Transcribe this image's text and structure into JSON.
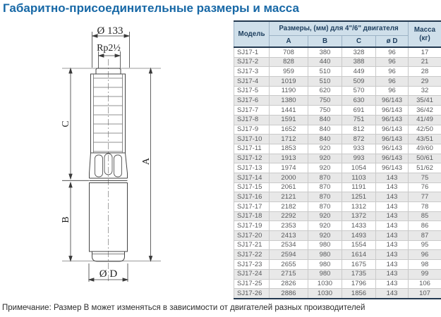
{
  "page": {
    "title": "Габаритно-присоединительные размеры и масса",
    "note": "Примечание: Размер B может изменяться в зависимости от двигателей разных производителей"
  },
  "drawing": {
    "top_diameter_label": "Ø 133",
    "thread_label": "Rp2½",
    "dim_a_label": "A",
    "dim_b_label": "B",
    "dim_c_label": "C",
    "bottom_diameter_label": "Ø D"
  },
  "table": {
    "header": {
      "model": "Модель",
      "dims_group": "Размеры, (мм) для 4\"/6\" двигателя",
      "dim_columns": [
        "A",
        "B",
        "C",
        "ø D"
      ],
      "mass_line1": "Масса",
      "mass_line2": "(кг)"
    },
    "rows": [
      [
        "SJ17-1",
        "708",
        "380",
        "328",
        "96",
        "17"
      ],
      [
        "SJ17-2",
        "828",
        "440",
        "388",
        "96",
        "21"
      ],
      [
        "SJ17-3",
        "959",
        "510",
        "449",
        "96",
        "28"
      ],
      [
        "SJ17-4",
        "1019",
        "510",
        "509",
        "96",
        "29"
      ],
      [
        "SJ17-5",
        "1190",
        "620",
        "570",
        "96",
        "32"
      ],
      [
        "SJ17-6",
        "1380",
        "750",
        "630",
        "96/143",
        "35/41"
      ],
      [
        "SJ17-7",
        "1441",
        "750",
        "691",
        "96/143",
        "36/42"
      ],
      [
        "SJ17-8",
        "1591",
        "840",
        "751",
        "96/143",
        "41/49"
      ],
      [
        "SJ17-9",
        "1652",
        "840",
        "812",
        "96/143",
        "42/50"
      ],
      [
        "SJ17-10",
        "1712",
        "840",
        "872",
        "96/143",
        "43/51"
      ],
      [
        "SJ17-11",
        "1853",
        "920",
        "933",
        "96/143",
        "49/60"
      ],
      [
        "SJ17-12",
        "1913",
        "920",
        "993",
        "96/143",
        "50/61"
      ],
      [
        "SJ17-13",
        "1974",
        "920",
        "1054",
        "96/143",
        "51/62"
      ],
      [
        "SJ17-14",
        "2000",
        "870",
        "1103",
        "143",
        "75"
      ],
      [
        "SJ17-15",
        "2061",
        "870",
        "1191",
        "143",
        "76"
      ],
      [
        "SJ17-16",
        "2121",
        "870",
        "1251",
        "143",
        "77"
      ],
      [
        "SJ17-17",
        "2182",
        "870",
        "1312",
        "143",
        "78"
      ],
      [
        "SJ17-18",
        "2292",
        "920",
        "1372",
        "143",
        "85"
      ],
      [
        "SJ17-19",
        "2353",
        "920",
        "1433",
        "143",
        "86"
      ],
      [
        "SJ17-20",
        "2413",
        "920",
        "1493",
        "143",
        "87"
      ],
      [
        "SJ17-21",
        "2534",
        "980",
        "1554",
        "143",
        "95"
      ],
      [
        "SJ17-22",
        "2594",
        "980",
        "1614",
        "143",
        "96"
      ],
      [
        "SJ17-23",
        "2655",
        "980",
        "1675",
        "143",
        "98"
      ],
      [
        "SJ17-24",
        "2715",
        "980",
        "1735",
        "143",
        "99"
      ],
      [
        "SJ17-25",
        "2826",
        "1030",
        "1796",
        "143",
        "106"
      ],
      [
        "SJ17-26",
        "2886",
        "1030",
        "1856",
        "143",
        "107"
      ]
    ]
  },
  "colors": {
    "accent_title": "#1768a6",
    "table_header_bg": "#cfdfea",
    "table_header_text": "#1d3e5e",
    "table_border_dark": "#22384f",
    "alt_row_bg": "#e8e8e8",
    "data_text": "#58595b"
  }
}
